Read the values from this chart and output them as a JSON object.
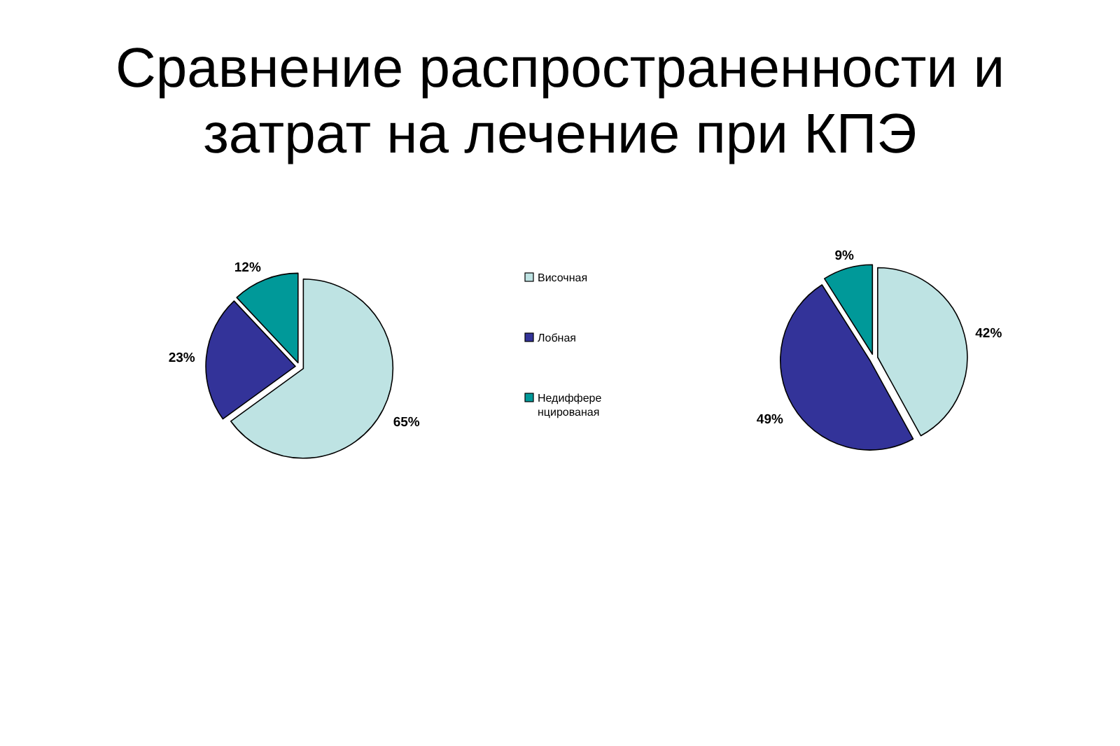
{
  "chart_data": [
    {
      "type": "pie",
      "title": "Сравнение распространенности и затрат на лечение при КПЭ",
      "categories": [
        "Височная",
        "Лобная",
        "Недифференцированая"
      ],
      "values": [
        65,
        23,
        12
      ],
      "value_labels": [
        "65%",
        "23%",
        "12%"
      ],
      "colors": [
        "#bee3e3",
        "#333399",
        "#009999"
      ],
      "legend": "right"
    },
    {
      "type": "pie",
      "values": [
        42,
        49,
        9
      ],
      "value_labels": [
        "42%",
        "49%",
        "9%"
      ],
      "colors": [
        "#bee3e3",
        "#333399",
        "#009999"
      ]
    }
  ]
}
